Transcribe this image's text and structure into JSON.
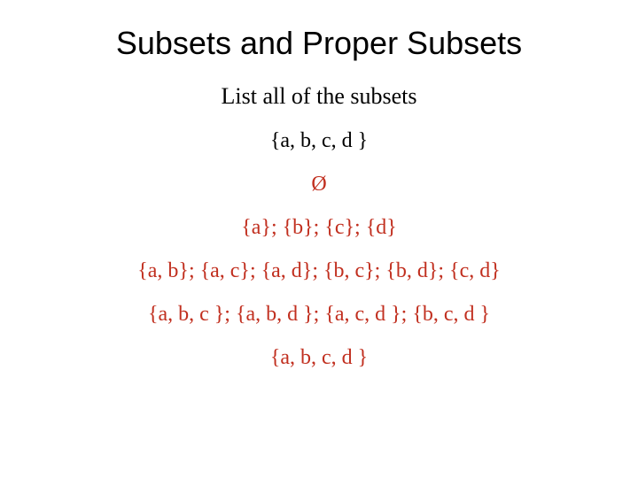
{
  "colors": {
    "background": "#ffffff",
    "title": "#000000",
    "black_text": "#000000",
    "red_text": "#c12f1f"
  },
  "typography": {
    "title_font_family": "Arial",
    "title_fontsize": 36,
    "body_font_family": "Times New Roman",
    "subtitle_fontsize": 26,
    "line_fontsize": 24
  },
  "title": "Subsets and Proper Subsets",
  "subtitle": "List all of the subsets",
  "lines": [
    {
      "text": "{a, b, c, d }",
      "color": "black"
    },
    {
      "text": "Ø",
      "color": "red"
    },
    {
      "text": "{a}; {b}; {c}; {d}",
      "color": "red"
    },
    {
      "text": "{a, b}; {a, c}; {a, d}; {b, c}; {b, d}; {c, d}",
      "color": "red"
    },
    {
      "text": "{a, b, c }; {a, b, d }; {a, c, d }; {b, c, d }",
      "color": "red"
    },
    {
      "text": "{a, b, c, d }",
      "color": "red"
    }
  ]
}
